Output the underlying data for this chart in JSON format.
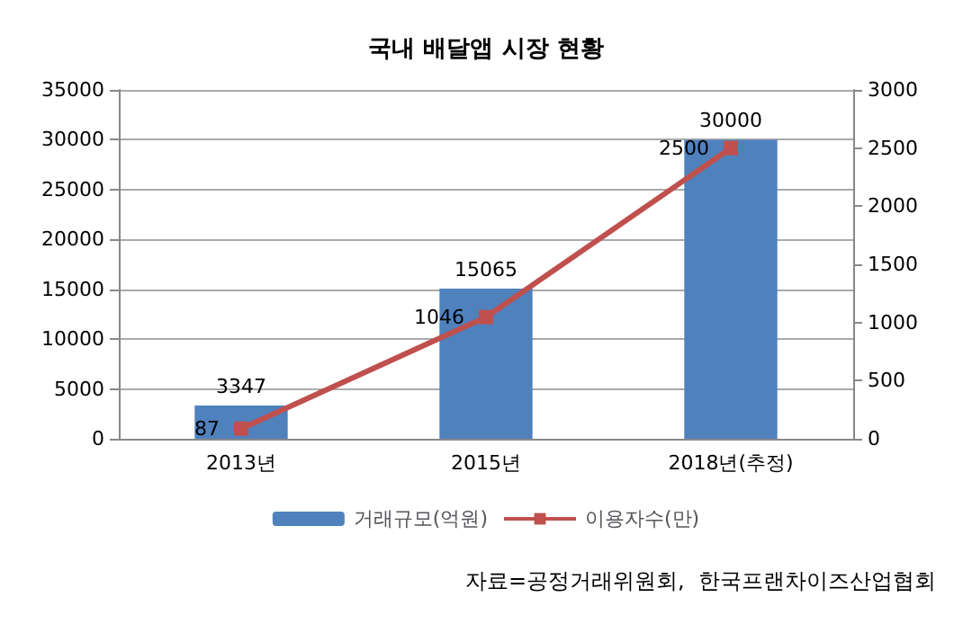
{
  "chart_data": {
    "type": "bar",
    "title": "국내 배달앱 시장 현황",
    "categories": [
      "2013년",
      "2015년",
      "2018년(추정)"
    ],
    "series": [
      {
        "name": "거래규모(억원)",
        "color": "#4f81bd",
        "values": [
          3347,
          15065,
          30000
        ]
      },
      {
        "name": "이용자수(만)",
        "type": "line",
        "axis": "y2",
        "color": "#c0504d",
        "values": [
          87,
          1046,
          2500
        ]
      }
    ],
    "ylim": [
      0,
      35000
    ],
    "yticks": [
      0,
      5000,
      10000,
      15000,
      20000,
      25000,
      30000,
      35000
    ],
    "y2lim": [
      0,
      3000
    ],
    "y2ticks": [
      0,
      500,
      1000,
      1500,
      2000,
      2500,
      3000
    ],
    "grid": "y",
    "legend": "bottom",
    "marker": "square",
    "data_labels": true,
    "annotations": [
      "자료=공정거래위원회,  한국프랜차이즈산업협회"
    ]
  }
}
